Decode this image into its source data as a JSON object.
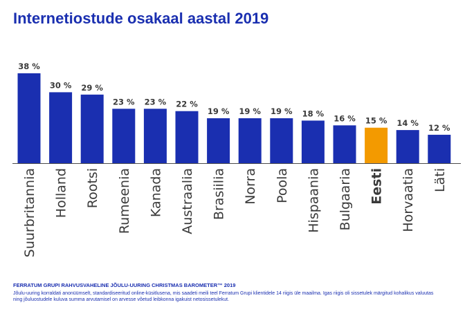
{
  "colors": {
    "title": "#1a2fb0",
    "bar": "#1a2fb0",
    "highlight": "#f39a00",
    "label": "#3a3a3a",
    "axis": "#4a4a4a"
  },
  "chart_data": {
    "type": "bar",
    "title": "Internetiostude osakaal aastal 2019",
    "categories": [
      "Suurbritannia",
      "Holland",
      "Rootsi",
      "Rumeenia",
      "Kanada",
      "Austraalia",
      "Brasiilia",
      "Norra",
      "Poola",
      "Hispaania",
      "Bulgaaria",
      "Eesti",
      "Horvaatia",
      "Läti"
    ],
    "values": [
      38,
      30,
      29,
      23,
      23,
      22,
      19,
      19,
      19,
      18,
      16,
      15,
      14,
      12
    ],
    "value_labels": [
      "38 %",
      "30 %",
      "29 %",
      "23 %",
      "23 %",
      "22 %",
      "19 %",
      "19 %",
      "19 %",
      "18 %",
      "16 %",
      "15 %",
      "14 %",
      "12 %"
    ],
    "highlight": "Eesti",
    "ylim": [
      0,
      38
    ],
    "grid": false,
    "xlabel": "",
    "ylabel": ""
  },
  "footer": {
    "title": "FERRATUM GRUPI RAHVUSVAHELINE JÕULU-UURING CHRISTMAS BAROMETER™ 2019",
    "note": "Jõulu-uuring korraldati anonüümselt, standardiseeritud online-küsitlusena, mis saadeti meili teel Ferratum Grupi klientidele 14 riigis üle maailma. Igas riigis oli sissetulek märgitud kohalikus valuutas ning jõuluostudele kuluva summa arvutamisel on arvesse võetud leibkonna igakuist netosissetulekut."
  }
}
